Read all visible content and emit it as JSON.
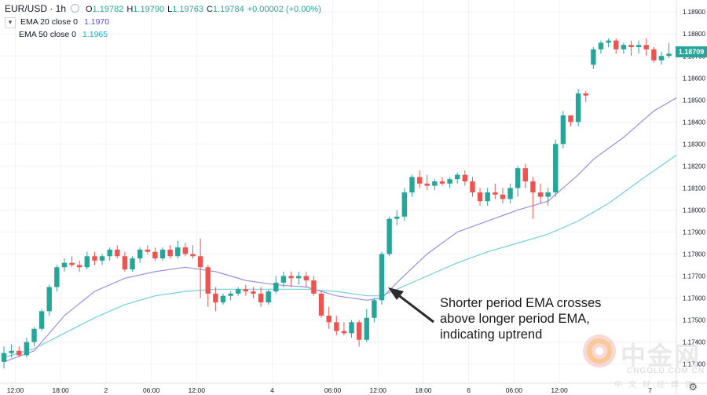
{
  "header": {
    "symbol": "EUR/USD · 1h",
    "open_label": "O",
    "open": "1.19782",
    "high_label": "H",
    "high": "1.19790",
    "low_label": "L",
    "low": "1.19763",
    "close_label": "C",
    "close": "1.19784",
    "change": "+0.00002 (+0.00%)"
  },
  "indicators": [
    {
      "label": "EMA 20 close 0",
      "value": "1.1970",
      "color": "#7e6fd8"
    },
    {
      "label": "EMA 50 close 0",
      "value": "1.1965",
      "color": "#4dc3d7"
    }
  ],
  "annotation": "Shorter period EMA crosses\nabove longer period EMA,\nindicating uptrend",
  "last_price": "1.18709",
  "watermark": {
    "domain": "CNGOLD.COM.CN"
  },
  "colors": {
    "up": "#26a69a",
    "down": "#ef5350",
    "ema20": "#9b8fe0",
    "ema50": "#72cfe0"
  },
  "chart_data": {
    "type": "candlestick",
    "y_ticks": [
      "1.17300",
      "1.17400",
      "1.17500",
      "1.17600",
      "1.17700",
      "1.17800",
      "1.17900",
      "1.18000",
      "1.18100",
      "1.18200",
      "1.18300",
      "1.18400",
      "1.18500",
      "1.18600",
      "1.18700",
      "1.18800",
      "1.18900"
    ],
    "ylim": [
      1.1722,
      1.1894
    ],
    "x_ticks": [
      {
        "label": "12:00",
        "index": 1.5
      },
      {
        "label": "18:00",
        "index": 7.5
      },
      {
        "label": "2",
        "index": 13.5
      },
      {
        "label": "06:00",
        "index": 19.5
      },
      {
        "label": "12:00",
        "index": 25.5
      },
      {
        "label": "4",
        "index": 35.5
      },
      {
        "label": "06:00",
        "index": 43.5
      },
      {
        "label": "12:00",
        "index": 49.5
      },
      {
        "label": "18:00",
        "index": 55.5
      },
      {
        "label": "6",
        "index": 61.5
      },
      {
        "label": "06:00",
        "index": 67.5
      },
      {
        "label": "12:00",
        "index": 73.5
      },
      {
        "label": "7",
        "index": 85.5
      }
    ],
    "candles": [
      [
        1.1731,
        1.1738,
        1.1728,
        1.1735
      ],
      [
        1.1735,
        1.1739,
        1.1733,
        1.1736
      ],
      [
        1.1736,
        1.1738,
        1.1733,
        1.1734
      ],
      [
        1.1734,
        1.1742,
        1.1733,
        1.174
      ],
      [
        1.174,
        1.1747,
        1.1738,
        1.1746
      ],
      [
        1.1746,
        1.1755,
        1.1745,
        1.1754
      ],
      [
        1.1754,
        1.1766,
        1.1752,
        1.1765
      ],
      [
        1.1765,
        1.1775,
        1.1763,
        1.1774
      ],
      [
        1.1774,
        1.1778,
        1.1772,
        1.1776
      ],
      [
        1.1776,
        1.1779,
        1.1774,
        1.1775
      ],
      [
        1.1775,
        1.1777,
        1.1772,
        1.1774
      ],
      [
        1.1774,
        1.1781,
        1.1773,
        1.1779
      ],
      [
        1.1779,
        1.1781,
        1.1775,
        1.1777
      ],
      [
        1.1777,
        1.178,
        1.1775,
        1.1779
      ],
      [
        1.1779,
        1.1783,
        1.1777,
        1.1782
      ],
      [
        1.1782,
        1.1784,
        1.1778,
        1.1779
      ],
      [
        1.1779,
        1.1781,
        1.1772,
        1.1773
      ],
      [
        1.1773,
        1.1779,
        1.1772,
        1.1778
      ],
      [
        1.1778,
        1.1783,
        1.1776,
        1.1782
      ],
      [
        1.1782,
        1.1784,
        1.178,
        1.1781
      ],
      [
        1.1781,
        1.1783,
        1.1777,
        1.1778
      ],
      [
        1.1778,
        1.1783,
        1.1777,
        1.1782
      ],
      [
        1.1782,
        1.1784,
        1.1778,
        1.1779
      ],
      [
        1.1779,
        1.1786,
        1.1778,
        1.1783
      ],
      [
        1.1783,
        1.1785,
        1.1779,
        1.178
      ],
      [
        1.178,
        1.1784,
        1.1778,
        1.1779
      ],
      [
        1.1779,
        1.1787,
        1.176,
        1.1774
      ],
      [
        1.1774,
        1.1775,
        1.1756,
        1.1762
      ],
      [
        1.1762,
        1.1765,
        1.1754,
        1.1758
      ],
      [
        1.1758,
        1.1762,
        1.1757,
        1.1761
      ],
      [
        1.1761,
        1.1763,
        1.1759,
        1.1762
      ],
      [
        1.1762,
        1.1765,
        1.1761,
        1.1764
      ],
      [
        1.1764,
        1.1766,
        1.1761,
        1.1763
      ],
      [
        1.1763,
        1.1765,
        1.176,
        1.1762
      ],
      [
        1.1762,
        1.1765,
        1.1756,
        1.1758
      ],
      [
        1.1758,
        1.1764,
        1.1757,
        1.1763
      ],
      [
        1.1763,
        1.177,
        1.1762,
        1.1767
      ],
      [
        1.1767,
        1.1772,
        1.1765,
        1.177
      ],
      [
        1.177,
        1.1772,
        1.1765,
        1.1769
      ],
      [
        1.1769,
        1.1772,
        1.1766,
        1.177
      ],
      [
        1.177,
        1.1772,
        1.1765,
        1.1768
      ],
      [
        1.1768,
        1.177,
        1.1761,
        1.1762
      ],
      [
        1.1762,
        1.1763,
        1.1751,
        1.1752
      ],
      [
        1.1752,
        1.1756,
        1.1746,
        1.1749
      ],
      [
        1.1749,
        1.1752,
        1.1743,
        1.1745
      ],
      [
        1.1745,
        1.1749,
        1.1743,
        1.1744
      ],
      [
        1.1744,
        1.175,
        1.1742,
        1.1749
      ],
      [
        1.1749,
        1.175,
        1.1738,
        1.1741
      ],
      [
        1.1741,
        1.1755,
        1.174,
        1.1751
      ],
      [
        1.1751,
        1.176,
        1.1749,
        1.1759
      ],
      [
        1.1759,
        1.1781,
        1.1757,
        1.178
      ],
      [
        1.178,
        1.1797,
        1.1779,
        1.1796
      ],
      [
        1.1796,
        1.18,
        1.1793,
        1.1797
      ],
      [
        1.1797,
        1.181,
        1.1795,
        1.1808
      ],
      [
        1.1808,
        1.1816,
        1.1806,
        1.1815
      ],
      [
        1.1815,
        1.1818,
        1.181,
        1.1812
      ],
      [
        1.1812,
        1.1816,
        1.1809,
        1.1811
      ],
      [
        1.1811,
        1.1814,
        1.1809,
        1.1813
      ],
      [
        1.1813,
        1.1815,
        1.1811,
        1.1812
      ],
      [
        1.1812,
        1.1815,
        1.181,
        1.1814
      ],
      [
        1.1814,
        1.1817,
        1.1812,
        1.1816
      ],
      [
        1.1816,
        1.1818,
        1.1811,
        1.1813
      ],
      [
        1.1813,
        1.1815,
        1.1806,
        1.1808
      ],
      [
        1.1808,
        1.181,
        1.1802,
        1.1804
      ],
      [
        1.1804,
        1.181,
        1.1802,
        1.1808
      ],
      [
        1.1808,
        1.1812,
        1.1805,
        1.1807
      ],
      [
        1.1807,
        1.181,
        1.1803,
        1.1805
      ],
      [
        1.1805,
        1.1812,
        1.1803,
        1.181
      ],
      [
        1.181,
        1.182,
        1.1806,
        1.1819
      ],
      [
        1.1819,
        1.1821,
        1.181,
        1.1813
      ],
      [
        1.1813,
        1.1815,
        1.1796,
        1.1808
      ],
      [
        1.1808,
        1.1812,
        1.1803,
        1.1806
      ],
      [
        1.1806,
        1.181,
        1.1802,
        1.1808
      ],
      [
        1.1808,
        1.1832,
        1.1806,
        1.183
      ],
      [
        1.183,
        1.1845,
        1.1828,
        1.1843
      ],
      [
        1.1843,
        1.1842,
        1.1838,
        1.184
      ],
      [
        1.184,
        1.1855,
        1.1838,
        1.1853
      ],
      [
        1.1853,
        1.1854,
        1.1849,
        1.1852
      ],
      [
        1.1866,
        1.1874,
        1.1864,
        1.1873
      ],
      [
        1.1873,
        1.1877,
        1.1871,
        1.1876
      ],
      [
        1.1876,
        1.1878,
        1.1874,
        1.1877
      ],
      [
        1.1877,
        1.1878,
        1.1871,
        1.1873
      ],
      [
        1.1873,
        1.1876,
        1.1871,
        1.1875
      ],
      [
        1.1875,
        1.1877,
        1.187,
        1.1874
      ],
      [
        1.1874,
        1.1877,
        1.1871,
        1.1875
      ],
      [
        1.1875,
        1.1878,
        1.187,
        1.1873
      ],
      [
        1.1873,
        1.1874,
        1.1867,
        1.1868
      ],
      [
        1.1868,
        1.1872,
        1.1866,
        1.187
      ],
      [
        1.187,
        1.1876,
        1.1869,
        1.1871
      ]
    ],
    "ema20": [
      [
        0,
        1.1731
      ],
      [
        4,
        1.1736
      ],
      [
        8,
        1.1752
      ],
      [
        12,
        1.1763
      ],
      [
        16,
        1.1769
      ],
      [
        20,
        1.1772
      ],
      [
        24,
        1.1774
      ],
      [
        28,
        1.1772
      ],
      [
        32,
        1.1768
      ],
      [
        36,
        1.1766
      ],
      [
        40,
        1.1765
      ],
      [
        44,
        1.1761
      ],
      [
        48,
        1.1759
      ],
      [
        50,
        1.176
      ],
      [
        52,
        1.1767
      ],
      [
        56,
        1.178
      ],
      [
        60,
        1.179
      ],
      [
        64,
        1.1795
      ],
      [
        68,
        1.18
      ],
      [
        72,
        1.1804
      ],
      [
        76,
        1.1816
      ],
      [
        78,
        1.1823
      ],
      [
        82,
        1.1833
      ],
      [
        86,
        1.1845
      ],
      [
        89,
        1.1851
      ]
    ],
    "ema50": [
      [
        0,
        1.1733
      ],
      [
        4,
        1.1737
      ],
      [
        8,
        1.1744
      ],
      [
        12,
        1.1751
      ],
      [
        16,
        1.1757
      ],
      [
        20,
        1.1761
      ],
      [
        24,
        1.1763
      ],
      [
        28,
        1.1764
      ],
      [
        32,
        1.1764
      ],
      [
        36,
        1.1764
      ],
      [
        40,
        1.1764
      ],
      [
        44,
        1.1763
      ],
      [
        48,
        1.1761
      ],
      [
        50,
        1.1761
      ],
      [
        52,
        1.1764
      ],
      [
        56,
        1.177
      ],
      [
        60,
        1.1776
      ],
      [
        64,
        1.1781
      ],
      [
        68,
        1.1785
      ],
      [
        72,
        1.1789
      ],
      [
        76,
        1.1795
      ],
      [
        80,
        1.1803
      ],
      [
        84,
        1.1813
      ],
      [
        89,
        1.1825
      ]
    ]
  }
}
